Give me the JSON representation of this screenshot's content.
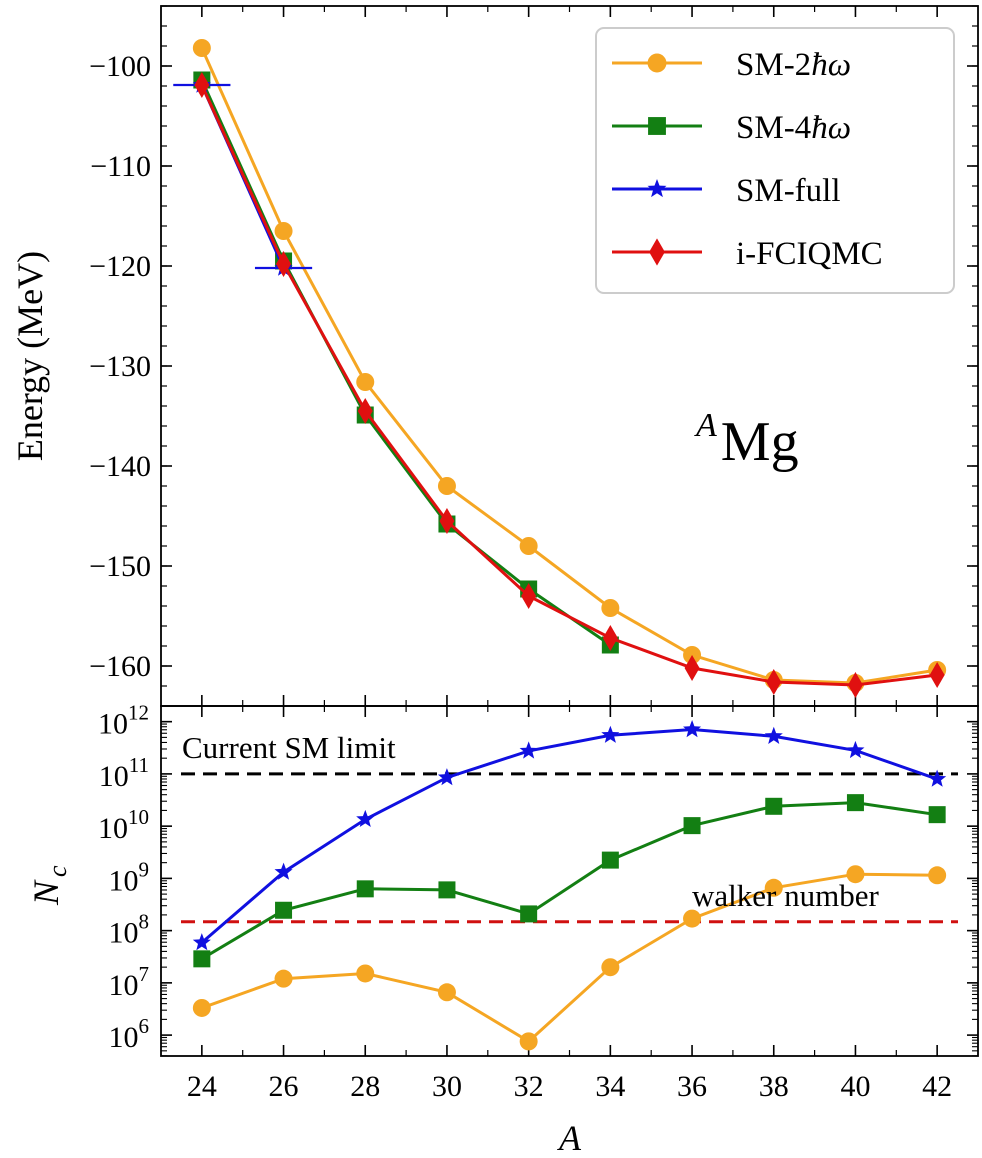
{
  "chart_data": [
    {
      "type": "line",
      "panel": "top",
      "ylabel": "Energy (MeV)",
      "ylim": [
        -164,
        -94
      ],
      "yticks": [
        -100,
        -110,
        -120,
        -130,
        -140,
        -150,
        -160
      ],
      "ytick_labels": [
        "−100",
        "−110",
        "−120",
        "−130",
        "−140",
        "−150",
        "−160"
      ],
      "annotation_prefix": "A",
      "annotation_main": "Mg",
      "legend_position": "top-right",
      "x": [
        24,
        26,
        28,
        30,
        32,
        34,
        36,
        38,
        40,
        42
      ],
      "series": [
        {
          "name": "SM-2ħω",
          "legend_base": "SM-2",
          "legend_hbar": "ħ",
          "legend_omega": "ω",
          "color": "#f5a623",
          "marker": "circle",
          "x": [
            24,
            26,
            28,
            30,
            32,
            34,
            36,
            38,
            40,
            42
          ],
          "values": [
            -98.2,
            -116.5,
            -131.6,
            -142.0,
            -148.0,
            -154.2,
            -158.9,
            -161.4,
            -161.7,
            -160.4
          ]
        },
        {
          "name": "SM-4ħω",
          "legend_base": "SM-4",
          "legend_hbar": "ħ",
          "legend_omega": "ω",
          "color": "#137f13",
          "marker": "square",
          "x": [
            24,
            26,
            28,
            30,
            32,
            34
          ],
          "values": [
            -101.4,
            -119.5,
            -134.9,
            -145.8,
            -152.3,
            -157.9
          ]
        },
        {
          "name": "SM-full",
          "legend_base": "SM-full",
          "color": "#1010e0",
          "marker": "star",
          "x": [
            24,
            26
          ],
          "values": [
            -101.9,
            -120.2
          ],
          "error_half_width": [
            0.7,
            0.7
          ]
        },
        {
          "name": "i-FCIQMC",
          "legend_base": "i-FCIQMC",
          "color": "#e01010",
          "marker": "diamond",
          "x": [
            24,
            26,
            28,
            30,
            32,
            34,
            36,
            38,
            40,
            42
          ],
          "values": [
            -101.9,
            -119.8,
            -134.5,
            -145.5,
            -153.0,
            -157.2,
            -160.2,
            -161.6,
            -161.9,
            -160.9
          ]
        }
      ]
    },
    {
      "type": "line",
      "panel": "bottom",
      "ylabel_main": "N",
      "ylabel_sub": "c",
      "xlabel": "A",
      "yscale": "log",
      "ylim_exp": [
        5.6,
        12.3
      ],
      "ytick_base": "10",
      "ytick_exponents": [
        "12",
        "11",
        "10",
        "9",
        "8",
        "7",
        "6"
      ],
      "xticks": [
        "24",
        "26",
        "28",
        "30",
        "32",
        "34",
        "36",
        "38",
        "40",
        "42"
      ],
      "hlines": [
        {
          "label": "Current SM limit",
          "value_exp": 11.0,
          "color": "#000000"
        },
        {
          "label": "walker number",
          "value_exp": 8.17,
          "color": "#d01010"
        }
      ],
      "series": [
        {
          "name": "SM-2ħω",
          "color": "#f5a623",
          "marker": "circle",
          "x": [
            24,
            26,
            28,
            30,
            32,
            34,
            36,
            38,
            40,
            42
          ],
          "log10_values": [
            6.52,
            7.08,
            7.18,
            6.82,
            5.88,
            7.3,
            8.23,
            8.82,
            9.08,
            9.06
          ]
        },
        {
          "name": "SM-4ħω",
          "color": "#137f13",
          "marker": "square",
          "x": [
            24,
            26,
            28,
            30,
            32,
            34,
            36,
            38,
            40,
            42
          ],
          "log10_values": [
            7.46,
            8.39,
            8.8,
            8.78,
            8.32,
            9.35,
            10.01,
            10.38,
            10.45,
            10.22
          ]
        },
        {
          "name": "SM-full",
          "color": "#1010e0",
          "marker": "star",
          "x": [
            24,
            26,
            28,
            30,
            32,
            34,
            36,
            38,
            40,
            42
          ],
          "log10_values": [
            7.77,
            9.12,
            10.13,
            10.93,
            11.44,
            11.74,
            11.85,
            11.72,
            11.45,
            10.9
          ]
        }
      ]
    }
  ]
}
